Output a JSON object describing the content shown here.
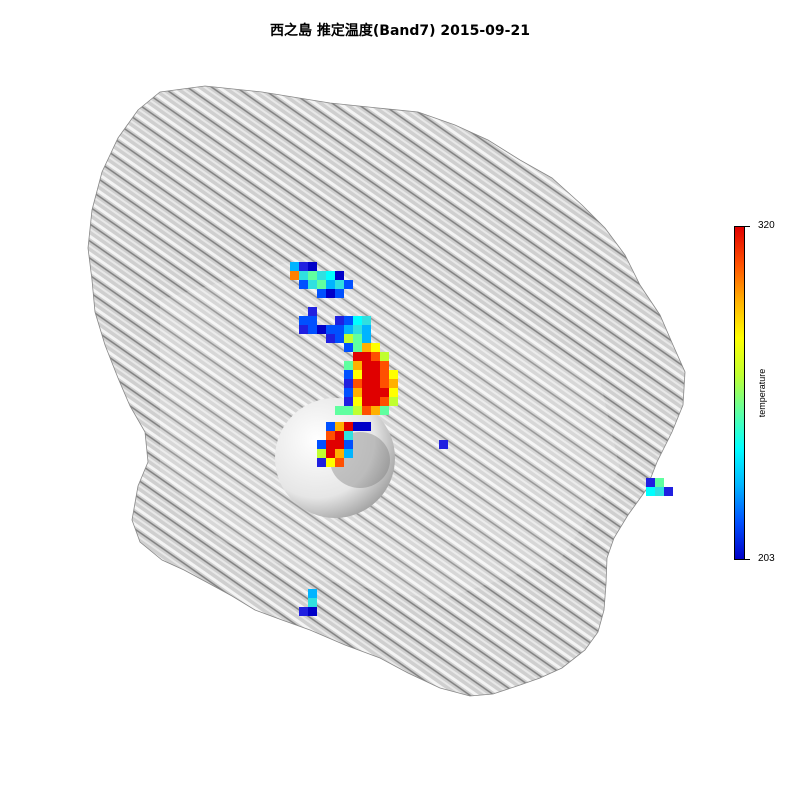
{
  "title": "西之島 推定温度(Band7) 2015-09-21",
  "legend": {
    "label": "temperature",
    "min": 203,
    "max": 320,
    "min_label": "203",
    "max_label": "320",
    "palette": [
      "#0000c8",
      "#0050ff",
      "#00b4ff",
      "#00ffff",
      "#60ffa0",
      "#c0ff30",
      "#ffff00",
      "#ffb000",
      "#ff5000",
      "#e00000"
    ]
  },
  "colors": {
    "island_fill": "#d0d0d0",
    "island_shade": "#9a9a9a",
    "crater": "#f2f2f2"
  }
}
